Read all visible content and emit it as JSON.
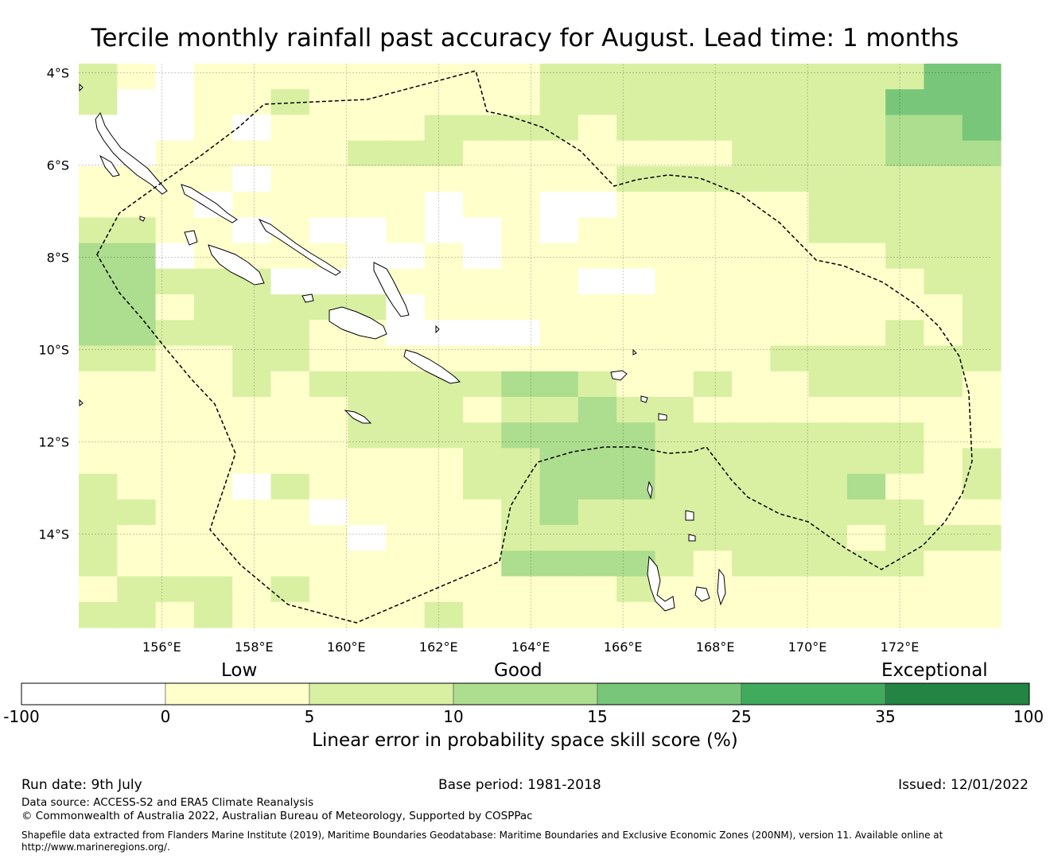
{
  "title": "Tercile monthly rainfall past accuracy for August. Lead time: 1 months",
  "map": {
    "lat_labels": [
      "4°S",
      "6°S",
      "8°S",
      "10°S",
      "12°S",
      "14°S"
    ],
    "lon_labels": [
      "156°E",
      "158°E",
      "160°E",
      "162°E",
      "164°E",
      "166°E",
      "168°E",
      "170°E",
      "172°E"
    ],
    "lon_range": [
      154.2,
      174.0
    ],
    "lat_range": [
      -3.8,
      -16.1
    ],
    "grid_origin": {
      "lon": 154.2,
      "lat": -3.8
    },
    "cell_size_deg": {
      "lon": 0.833,
      "lat": 0.556
    },
    "grid_cols": 24,
    "grid_rows": 22,
    "cell_categories": [
      "210111111111222222222244",
      "200112111111222222222444",
      "000101111222212222222334",
      "001111122211111112222333",
      "111101111111112222222222",
      "111011111011001111122222",
      "221101001001011111122222",
      "330111100101111111111222",
      "332220001111100111111122",
      "331222220111111111111112",
      "332222110000111111111212",
      "221122111111111111222222",
      "111121222223321121122221",
      "111111122212232211111111",
      "111111122223333222222211",
      "111111111122333222222212",
      "211102111122333222223112",
      "221111011112322222222211",
      "211111101112222222221222",
      "211111111113333212222211",
      "122212111111112111111111",
      "221211111211111111111111"
    ]
  },
  "colorbar": {
    "labels_top": [
      "Low",
      "Good",
      "Exceptional"
    ],
    "ticks": [
      "-100",
      "0",
      "5",
      "10",
      "15",
      "25",
      "35",
      "100"
    ],
    "colors": [
      "#ffffff",
      "#ffffcc",
      "#d9f0a3",
      "#addd8e",
      "#78c679",
      "#41ab5d",
      "#238443"
    ],
    "label": "Linear error in probability space skill score (%)"
  },
  "footer": {
    "run_date": "Run date: 9th July",
    "base_period": "Base period: 1981-2018",
    "issued": "Issued: 12/01/2022",
    "data_source": "Data source: ACCESS-S2 and ERA5 Climate Reanalysis",
    "copyright": "© Commonwealth of Australia 2022, Australian Bureau of Meteorology, Supported by COSPPac",
    "shapefile_line1": "Shapefile data extracted from Flanders Marine Institute (2019), Maritime Boundaries Geodatabase: Maritime Boundaries and Exclusive Economic Zones (200NM), version 11. Available online at",
    "shapefile_line2": "http://www.marineregions.org/."
  }
}
